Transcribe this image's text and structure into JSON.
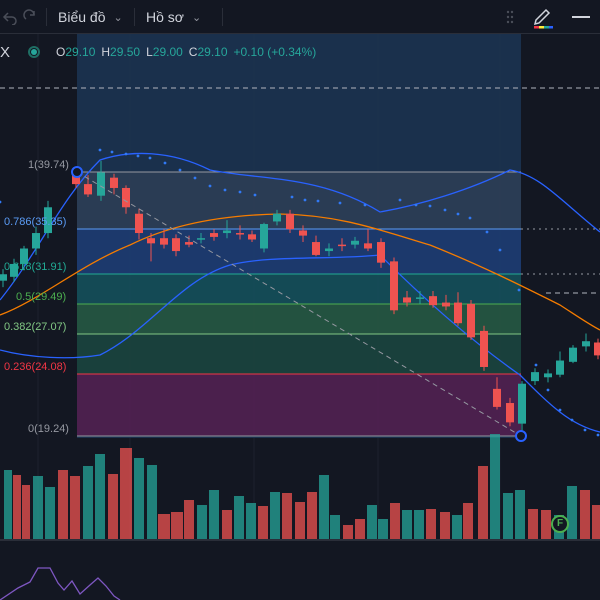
{
  "toolbar": {
    "chart_menu_label": "Biểu đồ",
    "profile_menu_label": "Hồ sơ"
  },
  "legend": {
    "symbol": "X",
    "o_label": "O",
    "o_value": "29.10",
    "h_label": "H",
    "h_value": "29.50",
    "l_label": "L",
    "l_value": "29.00",
    "c_label": "C",
    "c_value": "29.10",
    "change": "+0.10 (+0.34%)"
  },
  "fib_levels": [
    {
      "ratio": "1",
      "price": "(39.74)",
      "text": "1(39.74)",
      "color": "#9598a1"
    },
    {
      "ratio": "0.786",
      "price": "(35.35)",
      "text": "0.786(35.35)",
      "color": "#5b9cf6"
    },
    {
      "ratio": "0.618",
      "price": "(31.91)",
      "text": "0.618(31.91)",
      "color": "#22ab94"
    },
    {
      "ratio": "0.5",
      "price": "(29.49)",
      "text": "0.5(29.49)",
      "color": "#4caf50"
    },
    {
      "ratio": "0.382",
      "price": "(27.07)",
      "text": "0.382(27.07)",
      "color": "#81c784"
    },
    {
      "ratio": "0.236",
      "price": "(24.08)",
      "text": "0.236(24.08)",
      "color": "#f23645"
    },
    {
      "ratio": "0",
      "price": "(19.24)",
      "text": "0(19.24)",
      "color": "#9598a1"
    }
  ],
  "event_badge": "F",
  "colors": {
    "up": "#26a69a",
    "down": "#ef5350",
    "bollinger": "#2962ff",
    "sma": "#f57c00",
    "background": "#131722"
  },
  "icons": [
    "undo-icon",
    "redo-icon",
    "drag-handle-icon",
    "pencil-icon",
    "minus-icon"
  ]
}
